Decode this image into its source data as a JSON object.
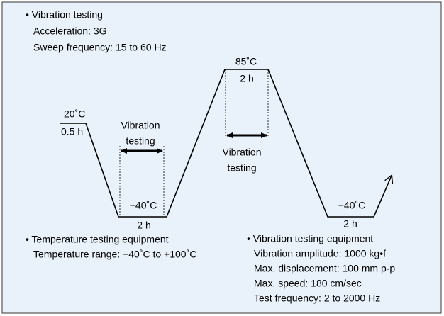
{
  "vibration_testing": {
    "title": "• Vibration testing",
    "lines": [
      "Acceleration: 3G",
      "Sweep frequency: 15 to 60 Hz"
    ]
  },
  "profile": {
    "start": {
      "temperature": "20˚C",
      "duration": "0.5 h"
    },
    "low1": {
      "temperature": "−40˚C",
      "duration": "2 h",
      "vibration": [
        "Vibration",
        "testing"
      ]
    },
    "high": {
      "temperature": "85˚C",
      "duration": "2 h",
      "vibration": [
        "Vibration",
        "testing"
      ]
    },
    "low2": {
      "temperature": "−40˚C",
      "duration": "2 h"
    }
  },
  "temperature_equipment": {
    "title": "• Temperature testing equipment",
    "lines": [
      "Temperature range: −40˚C to +100˚C"
    ]
  },
  "vibration_equipment": {
    "title": "• Vibration testing equipment",
    "lines": [
      "Vibration amplitude: 1000 kg•f",
      "Max. displacement: 100 mm p-p",
      "Max. speed: 180 cm/sec",
      "Test frequency: 2 to 2000 Hz"
    ]
  }
}
